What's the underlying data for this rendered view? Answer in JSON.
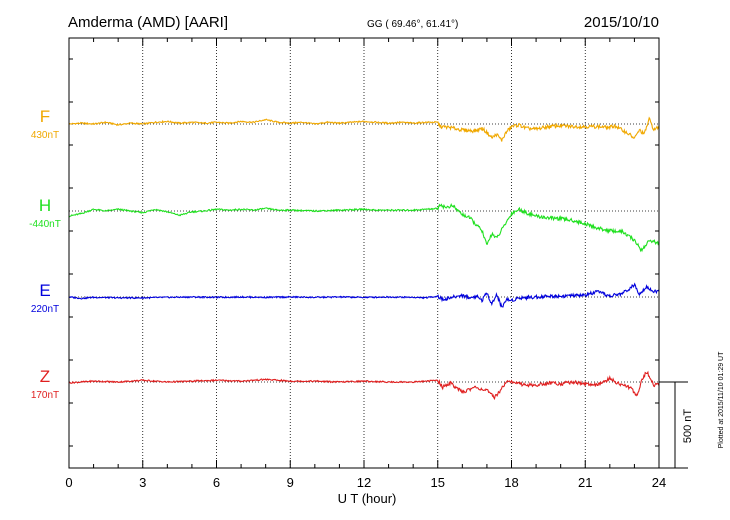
{
  "chart_data": {
    "type": "line",
    "title": "Amderma (AMD)  [AARI]",
    "coords": "GG ( 69.46°,  61.41°)",
    "date": "2015/10/10",
    "xlabel": "U T (hour)",
    "xlim": [
      0,
      24
    ],
    "xticks": [
      "0",
      "3",
      "6",
      "9",
      "12",
      "15",
      "18",
      "21",
      "24"
    ],
    "scale_label": "500 nT",
    "plotted_note": "Plotted at 2015/11/10 01:29 UT",
    "grid": true,
    "series": [
      {
        "name": "F",
        "offset_label": "430nT",
        "color": "#f0a800",
        "points": [
          [
            0,
            0
          ],
          [
            0.5,
            5
          ],
          [
            1,
            0
          ],
          [
            1.5,
            10
          ],
          [
            2,
            -5
          ],
          [
            2.5,
            5
          ],
          [
            3,
            0
          ],
          [
            3.5,
            10
          ],
          [
            4,
            15
          ],
          [
            4.5,
            5
          ],
          [
            5,
            10
          ],
          [
            5.5,
            5
          ],
          [
            6,
            10
          ],
          [
            6.5,
            5
          ],
          [
            7,
            15
          ],
          [
            7.5,
            10
          ],
          [
            8,
            25
          ],
          [
            8.5,
            10
          ],
          [
            9,
            5
          ],
          [
            9.5,
            10
          ],
          [
            10,
            0
          ],
          [
            10.5,
            10
          ],
          [
            11,
            5
          ],
          [
            11.5,
            10
          ],
          [
            12,
            15
          ],
          [
            12.5,
            10
          ],
          [
            13,
            5
          ],
          [
            13.5,
            10
          ],
          [
            14,
            5
          ],
          [
            14.5,
            10
          ],
          [
            15,
            10
          ],
          [
            15.1,
            -15
          ],
          [
            15.5,
            -20
          ],
          [
            16,
            -35
          ],
          [
            16.5,
            -40
          ],
          [
            16.8,
            -25
          ],
          [
            17,
            -50
          ],
          [
            17.2,
            -80
          ],
          [
            17.4,
            -60
          ],
          [
            17.6,
            -95
          ],
          [
            17.8,
            -45
          ],
          [
            18,
            -15
          ],
          [
            18.3,
            -5
          ],
          [
            18.6,
            -25
          ],
          [
            19,
            -30
          ],
          [
            19.5,
            -15
          ],
          [
            20,
            -10
          ],
          [
            20.5,
            -15
          ],
          [
            21,
            -15
          ],
          [
            21.5,
            -15
          ],
          [
            22,
            -20
          ],
          [
            22.2,
            -10
          ],
          [
            22.5,
            -35
          ],
          [
            22.8,
            -60
          ],
          [
            23,
            -85
          ],
          [
            23.2,
            -35
          ],
          [
            23.4,
            -60
          ],
          [
            23.6,
            30
          ],
          [
            23.8,
            -35
          ],
          [
            24,
            -15
          ]
        ]
      },
      {
        "name": "H",
        "offset_label": "-440nT",
        "color": "#20e020",
        "points": [
          [
            0,
            -30
          ],
          [
            0.5,
            -15
          ],
          [
            1,
            10
          ],
          [
            1.5,
            0
          ],
          [
            2,
            10
          ],
          [
            2.5,
            0
          ],
          [
            3,
            -10
          ],
          [
            3.5,
            10
          ],
          [
            4,
            -5
          ],
          [
            4.5,
            -25
          ],
          [
            5,
            -5
          ],
          [
            5.5,
            0
          ],
          [
            6,
            10
          ],
          [
            6.5,
            5
          ],
          [
            7,
            10
          ],
          [
            7.5,
            5
          ],
          [
            8,
            15
          ],
          [
            8.5,
            5
          ],
          [
            9,
            5
          ],
          [
            10,
            0
          ],
          [
            11,
            5
          ],
          [
            12,
            10
          ],
          [
            12.5,
            5
          ],
          [
            13,
            5
          ],
          [
            14,
            5
          ],
          [
            15,
            15
          ],
          [
            15.1,
            40
          ],
          [
            15.3,
            20
          ],
          [
            15.6,
            30
          ],
          [
            16,
            -20
          ],
          [
            16.3,
            -40
          ],
          [
            16.6,
            -85
          ],
          [
            16.8,
            -115
          ],
          [
            17,
            -200
          ],
          [
            17.2,
            -130
          ],
          [
            17.4,
            -160
          ],
          [
            17.6,
            -110
          ],
          [
            18,
            -15
          ],
          [
            18.3,
            10
          ],
          [
            18.6,
            -10
          ],
          [
            19,
            -30
          ],
          [
            19.5,
            -40
          ],
          [
            20,
            -45
          ],
          [
            20.5,
            -55
          ],
          [
            21,
            -75
          ],
          [
            21.5,
            -100
          ],
          [
            22,
            -115
          ],
          [
            22.5,
            -120
          ],
          [
            23,
            -170
          ],
          [
            23.3,
            -230
          ],
          [
            23.6,
            -170
          ],
          [
            24,
            -190
          ]
        ]
      },
      {
        "name": "E",
        "offset_label": "220nT",
        "color": "#0000dd",
        "points": [
          [
            0,
            0
          ],
          [
            0.5,
            -8
          ],
          [
            1,
            -2
          ],
          [
            2,
            -5
          ],
          [
            3,
            -5
          ],
          [
            4,
            -2
          ],
          [
            5,
            0
          ],
          [
            6,
            -2
          ],
          [
            7,
            0
          ],
          [
            8,
            -2
          ],
          [
            9,
            0
          ],
          [
            10,
            -2
          ],
          [
            11,
            0
          ],
          [
            12,
            -2
          ],
          [
            13,
            0
          ],
          [
            14,
            -2
          ],
          [
            14.5,
            -5
          ],
          [
            15,
            5
          ],
          [
            15.2,
            -15
          ],
          [
            15.5,
            -5
          ],
          [
            16,
            10
          ],
          [
            16.3,
            -5
          ],
          [
            16.6,
            5
          ],
          [
            16.8,
            -20
          ],
          [
            17,
            25
          ],
          [
            17.2,
            -40
          ],
          [
            17.4,
            15
          ],
          [
            17.6,
            -60
          ],
          [
            17.8,
            -15
          ],
          [
            18,
            -20
          ],
          [
            18.3,
            -5
          ],
          [
            19,
            0
          ],
          [
            19.5,
            5
          ],
          [
            20,
            5
          ],
          [
            21,
            10
          ],
          [
            21.5,
            30
          ],
          [
            22,
            5
          ],
          [
            22.5,
            20
          ],
          [
            23,
            70
          ],
          [
            23.2,
            20
          ],
          [
            23.5,
            60
          ],
          [
            23.8,
            30
          ],
          [
            24,
            35
          ]
        ]
      },
      {
        "name": "Z",
        "offset_label": "170nT",
        "color": "#e02020",
        "points": [
          [
            0,
            -5
          ],
          [
            1,
            5
          ],
          [
            2,
            0
          ],
          [
            3,
            10
          ],
          [
            4,
            0
          ],
          [
            5,
            5
          ],
          [
            6,
            10
          ],
          [
            7,
            5
          ],
          [
            8,
            15
          ],
          [
            9,
            5
          ],
          [
            10,
            5
          ],
          [
            11,
            0
          ],
          [
            12,
            5
          ],
          [
            13,
            0
          ],
          [
            14,
            0
          ],
          [
            15,
            10
          ],
          [
            15.2,
            -30
          ],
          [
            15.5,
            -5
          ],
          [
            16,
            -60
          ],
          [
            16.5,
            -30
          ],
          [
            17,
            -50
          ],
          [
            17.3,
            -90
          ],
          [
            17.6,
            -40
          ],
          [
            17.8,
            10
          ],
          [
            18,
            0
          ],
          [
            18.5,
            -15
          ],
          [
            19,
            -20
          ],
          [
            19.5,
            -5
          ],
          [
            20,
            -10
          ],
          [
            20.5,
            0
          ],
          [
            21,
            -10
          ],
          [
            21.5,
            -20
          ],
          [
            22,
            20
          ],
          [
            22.3,
            -5
          ],
          [
            22.6,
            -20
          ],
          [
            22.9,
            -40
          ],
          [
            23.1,
            -80
          ],
          [
            23.3,
            10
          ],
          [
            23.5,
            60
          ],
          [
            23.8,
            -20
          ],
          [
            24,
            -5
          ]
        ]
      }
    ]
  }
}
